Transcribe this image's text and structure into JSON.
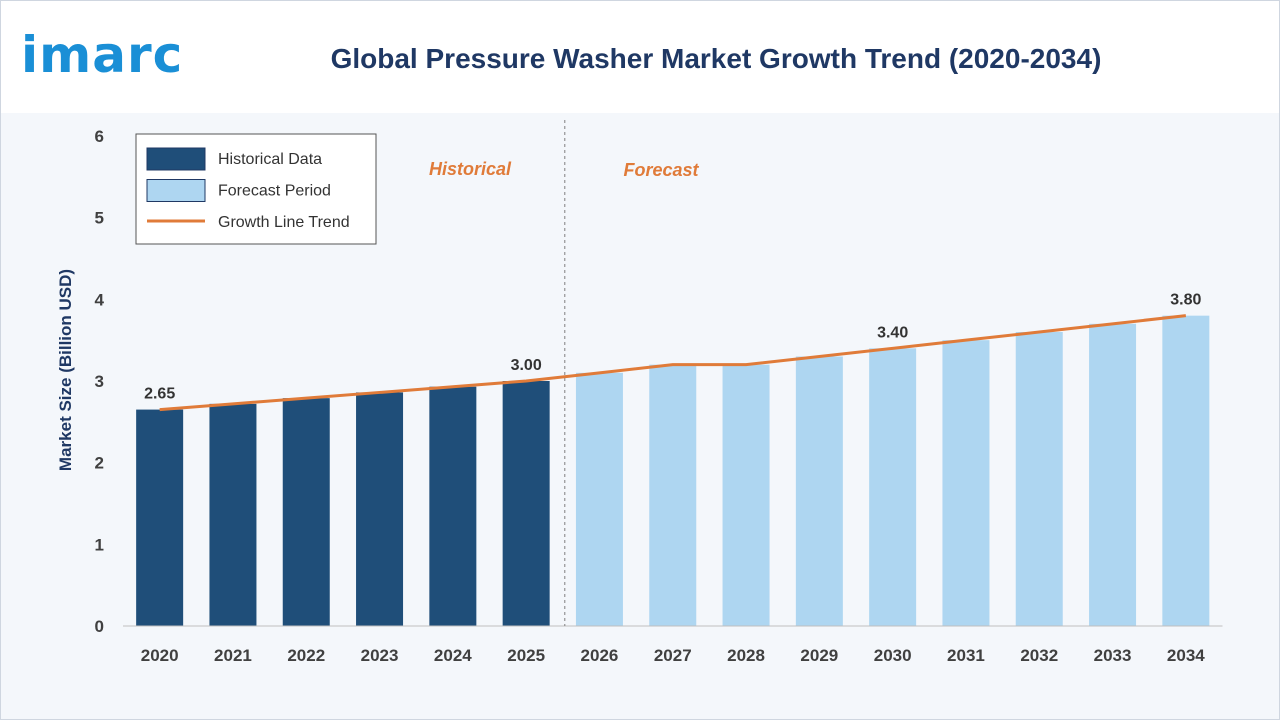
{
  "logo_text": "imarc",
  "title": "Global Pressure Washer Market Growth Trend (2020-2034)",
  "colors": {
    "historical": "#1f4e79",
    "forecast": "#aed6f1",
    "trend": "#e07b39",
    "title": "#1f3864",
    "logo": "#1a8fd6",
    "phase_label": "#e07b39",
    "axis_text": "#404040"
  },
  "legend": {
    "items": [
      {
        "label": "Historical Data",
        "swatch": "historical"
      },
      {
        "label": "Forecast Period",
        "swatch": "forecast"
      },
      {
        "label": "Growth Line Trend",
        "swatch": "trend"
      }
    ],
    "position": "top-left"
  },
  "phase_labels": {
    "historical": "Historical",
    "forecast": "Forecast"
  },
  "chart_data": {
    "type": "bar",
    "title": "Global Pressure Washer Market Growth Trend (2020-2034)",
    "xlabel": "",
    "ylabel": "Market Size (Billion USD)",
    "ylim": [
      0,
      6
    ],
    "yticks": [
      0,
      1,
      2,
      3,
      4,
      5,
      6
    ],
    "grid": false,
    "categories": [
      "2020",
      "2021",
      "2022",
      "2023",
      "2024",
      "2025",
      "2026",
      "2027",
      "2028",
      "2029",
      "2030",
      "2031",
      "2032",
      "2033",
      "2034"
    ],
    "values": [
      2.65,
      2.72,
      2.79,
      2.86,
      2.93,
      3.0,
      3.1,
      3.2,
      3.2,
      3.3,
      3.4,
      3.5,
      3.6,
      3.7,
      3.8
    ],
    "historical_last_index": 5,
    "data_labels": [
      {
        "index": 0,
        "text": "2.65"
      },
      {
        "index": 5,
        "text": "3.00"
      },
      {
        "index": 10,
        "text": "3.40"
      },
      {
        "index": 14,
        "text": "3.80"
      }
    ],
    "series": [
      {
        "name": "Historical Data",
        "kind": "bar"
      },
      {
        "name": "Forecast Period",
        "kind": "bar"
      },
      {
        "name": "Growth Line Trend",
        "kind": "line"
      }
    ]
  }
}
